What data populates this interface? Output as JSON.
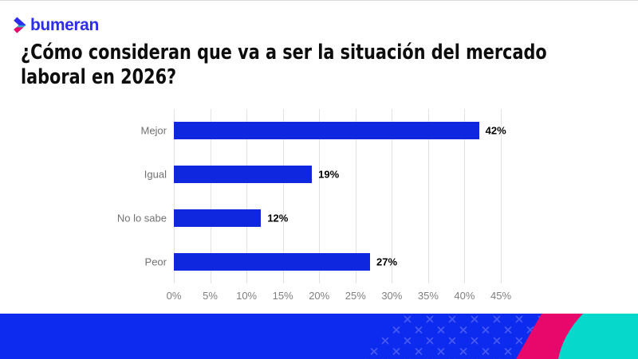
{
  "brand": {
    "name": "bumeran"
  },
  "title": {
    "line1": "¿Cómo consideran que va a ser la situación del mercado",
    "line2": "laboral en 2026?"
  },
  "chart_data": {
    "type": "bar",
    "orientation": "horizontal",
    "title": "¿Cómo consideran que va a ser la situación del mercado laboral en 2026?",
    "categories": [
      "Mejor",
      "Igual",
      "No lo sabe",
      "Peor"
    ],
    "values": [
      42,
      19,
      12,
      27
    ],
    "value_labels": [
      "42%",
      "19%",
      "12%",
      "27%"
    ],
    "xlim": [
      0,
      45
    ],
    "x_tick_step": 5,
    "x_tick_labels": [
      "0%",
      "5%",
      "10%",
      "15%",
      "20%",
      "25%",
      "30%",
      "35%",
      "40%",
      "45%"
    ],
    "grid": true,
    "legend": false,
    "bar_color": "#0e27df"
  },
  "colors": {
    "bar_blue": "#0e27df",
    "band_blue": "#0d2aef",
    "accent_pink": "#e8076b",
    "accent_cyan": "#06d8cc",
    "pattern_x_blue": "#5263f2",
    "logo_blue": "#2d2df0",
    "logo_gradient_top": "#2d2df0",
    "logo_gradient_mid": "#1ed8c9",
    "logo_gradient_bottom": "#e8076b",
    "gridline_gray": "#e2e2e2",
    "category_label_gray": "#717171",
    "tick_label_gray": "#7e7e7e",
    "title_black": "#0d0d0d"
  }
}
